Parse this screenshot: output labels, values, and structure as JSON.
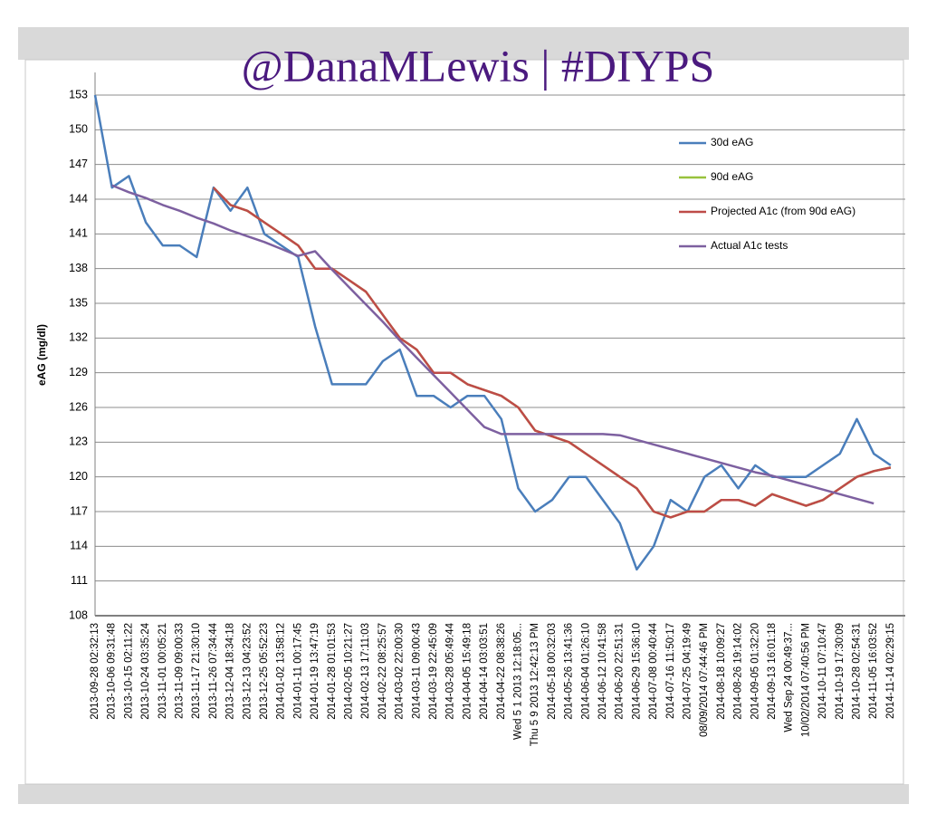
{
  "chart_data": {
    "type": "line",
    "title": "@DanaMLewis | #DIYPS",
    "y_label": "eAG (mg/dl)",
    "categories": [
      "2013-09-28 02:32:13",
      "2013-10-06 09:31:48",
      "2013-10-15 02:11:22",
      "2013-10-24 03:35:24",
      "2013-11-01 00:05:21",
      "2013-11-09 09:00:33",
      "2013-11-17 21:30:10",
      "2013-11-26 07:34:44",
      "2013-12-04 18:34:18",
      "2013-12-13 04:23:52",
      "2013-12-25 05:52:23",
      "2014-01-02 13:58:12",
      "2014-01-11 00:17:45",
      "2014-01-19 13:47:19",
      "2014-01-28 01:01:53",
      "2014-02-05 10:21:27",
      "2014-02-13 17:11:03",
      "2014-02-22 08:25:57",
      "2014-03-02 22:00:30",
      "2014-03-11 09:00:43",
      "2014-03-19 22:45:09",
      "2014-03-28 05:49:44",
      "2014-04-05 15:49:18",
      "2014-04-14 03:03:51",
      "2014-04-22 08:38:26",
      "Wed 5 1 2013 12:18:05...",
      "Thu 5 9 2013 12:42:13 PM",
      "2014-05-18 00:32:03",
      "2014-05-26 13:41:36",
      "2014-06-04 01:26:10",
      "2014-06-12 10:41:58",
      "2014-06-20 22:51:31",
      "2014-06-29 15:36:10",
      "2014-07-08 00:40:44",
      "2014-07-16 11:50:17",
      "2014-07-25 04:19:49",
      "08/09/2014 07:44:46 PM",
      "2014-08-18 10:09:27",
      "2014-08-26 19:14:02",
      "2014-09-05 01:32:20",
      "2014-09-13 16:01:18",
      "Wed Sep 24 00:49:37...",
      "10/02/2014 07:40:56 PM",
      "2014-10-11 07:10:47",
      "2014-10-19 17:30:09",
      "2014-10-28 02:54:31",
      "2014-11-05 16:03:52",
      "2014-11-14 02:29:15"
    ],
    "series": [
      {
        "name": "30d eAG",
        "color": "#4a7ebb",
        "values": [
          153,
          145,
          146,
          142,
          140,
          140,
          139,
          145,
          143,
          145,
          141,
          140,
          139,
          133,
          128,
          128,
          128,
          130,
          131,
          127,
          127,
          126,
          127,
          127,
          125,
          119,
          117,
          118,
          120,
          120,
          118,
          116,
          112,
          114,
          118,
          117,
          120,
          121,
          119,
          121,
          120,
          120,
          120,
          121,
          122,
          125,
          122,
          121
        ]
      },
      {
        "name": "90d eAG",
        "color": "#98c23c",
        "values": [
          null,
          null,
          null,
          null,
          null,
          null,
          null,
          145,
          143.5,
          143,
          142,
          141,
          140,
          138,
          138,
          137,
          136,
          134,
          132,
          131,
          129,
          129,
          128,
          127.5,
          127,
          126,
          124,
          123.5,
          123,
          122,
          121,
          120,
          119,
          117,
          116.5,
          117,
          117,
          118,
          118,
          117.5,
          118.5,
          118,
          117.5,
          118,
          119,
          120,
          120.5,
          120.8
        ]
      },
      {
        "name": "Projected A1c (from 90d eAG)",
        "color": "#be4b48",
        "values": [
          null,
          null,
          null,
          null,
          null,
          null,
          null,
          145,
          143.5,
          143,
          142,
          141,
          140,
          138,
          138,
          137,
          136,
          134,
          132,
          131,
          129,
          129,
          128,
          127.5,
          127,
          126,
          124,
          123.5,
          123,
          122,
          121,
          120,
          119,
          117,
          116.5,
          117,
          117,
          118,
          118,
          117.5,
          118.5,
          118,
          117.5,
          118,
          119,
          120,
          120.5,
          120.8
        ]
      },
      {
        "name": "Actual A1c tests",
        "color": "#7d60a0",
        "values": [
          null,
          145.2,
          144.6,
          144.1,
          143.5,
          143,
          142.4,
          141.9,
          141.3,
          140.8,
          140.3,
          139.7,
          139.1,
          139.5,
          137.9,
          136.4,
          134.9,
          133.4,
          131.8,
          130.3,
          128.8,
          127.3,
          125.8,
          124.3,
          123.7,
          123.7,
          123.7,
          123.7,
          123.7,
          123.7,
          123.7,
          123.6,
          123.2,
          122.8,
          122.4,
          122,
          121.6,
          121.2,
          120.8,
          120.4,
          120.1,
          119.7,
          119.3,
          118.9,
          118.5,
          118.1,
          117.7,
          null
        ]
      }
    ],
    "ylim": [
      108,
      153
    ],
    "yticks": [
      108,
      111,
      114,
      117,
      120,
      123,
      126,
      129,
      132,
      135,
      138,
      141,
      144,
      147,
      150,
      153
    ],
    "grid": true,
    "legend": "top-right"
  }
}
